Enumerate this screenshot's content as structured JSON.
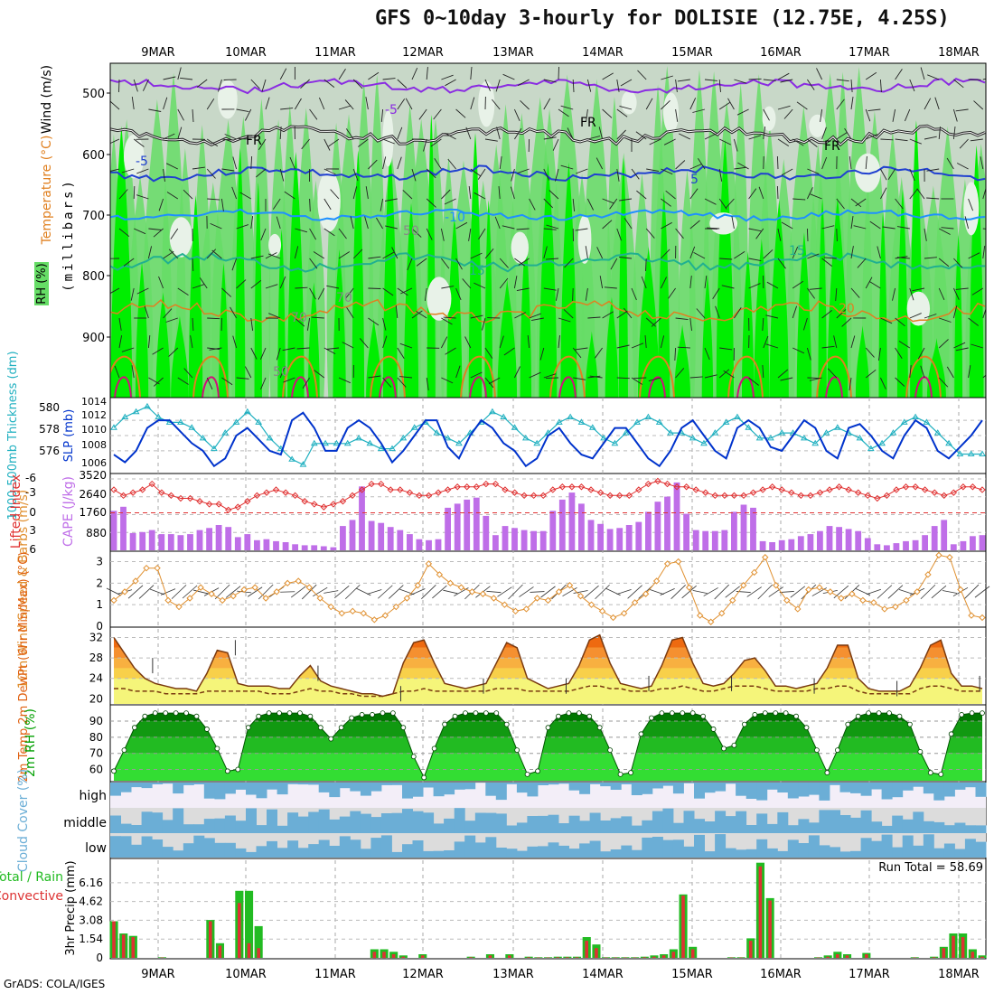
{
  "title": "GFS 0~10day 3-hourly for DOLISIE (12.75E, 4.25S)",
  "credit": "GrADS: COLA/IGES",
  "colors": {
    "rh_light": "#c8d8c8",
    "rh_mid": "#66dd66",
    "rh_high": "#00ee00",
    "temp_minus": "#8a2be2",
    "temp_5": "#2040d0",
    "temp_10": "#1e90ff",
    "temp_15": "#20b090",
    "temp_20": "#e08020",
    "slp": "#0033cc",
    "thickness": "#20b0c0",
    "cape": "#bf6ee8",
    "lifted": "#e03030",
    "wind10m": "#e09030",
    "temp2m": "#e06010",
    "rh2m": "#00a000",
    "cloud": "#6baed6",
    "cloud_bg": "#dcdcdc",
    "precip_total": "#22bb22",
    "precip_conv": "#dd3333"
  },
  "date_labels": [
    "9MAR",
    "10MAR",
    "11MAR",
    "12MAR",
    "13MAR",
    "14MAR",
    "15MAR",
    "16MAR",
    "17MAR",
    "18MAR"
  ],
  "panels": {
    "upper": {
      "ylabel_wind": "Wind (m/s)",
      "ylabel_temp": "Temperature (°C)",
      "ylabel_mb": "(millibars)",
      "ylabel_rh": "RH (%)",
      "yticks": [
        "500",
        "600",
        "700",
        "800",
        "900"
      ],
      "contour_labels": [
        "-5",
        "FR",
        "FR",
        "FR",
        "-5",
        "5",
        "-10",
        "15",
        "15",
        "20",
        "50",
        "70",
        "70",
        "50"
      ]
    },
    "slp": {
      "ylabel_left": "1000-500mb Thickness (dm)",
      "ylabel_right": "SLP (mb)",
      "yticks_left": [
        "580",
        "578",
        "576"
      ],
      "yticks_right": [
        "1014",
        "1012",
        "1010",
        "1008",
        "1006"
      ]
    },
    "cape": {
      "ylabel_left": "Lifted Index",
      "ylabel_right": "CAPE (J/kg)",
      "yticks_left": [
        "-6",
        "-3",
        "0",
        "3",
        "6"
      ],
      "yticks_right": [
        "3520",
        "2640",
        "1760",
        "880"
      ]
    },
    "wind10m": {
      "ylabel": "10m Wind Speed & Barbs (m/s)",
      "yticks": [
        "3",
        "2",
        "1",
        "0"
      ]
    },
    "temp2m": {
      "ylabel": "2m Temp 2m DewPt (6hr Min/Max) (°C)",
      "yticks": [
        "32",
        "28",
        "24",
        "20"
      ]
    },
    "rh2m": {
      "ylabel": "2m RH (%)",
      "yticks": [
        "90",
        "80",
        "70",
        "60"
      ]
    },
    "cloud": {
      "ylabel": "Cloud Cover (%)",
      "levels": [
        "high",
        "middle",
        "low"
      ]
    },
    "precip": {
      "ylabel_left": "Total / Rain Convective",
      "ylabel_right": "3hr Precip (mm)",
      "yticks": [
        "6.16",
        "4.62",
        "3.08",
        "1.54",
        "0"
      ],
      "run_total_label": "Run Total = 58.69"
    }
  },
  "chart_data": [
    {
      "type": "line",
      "title": "1000-500mb Thickness / SLP",
      "series": [
        {
          "name": "SLP (mb)",
          "values": [
            1007.5,
            1006.5,
            1008,
            1011,
            1012,
            1012,
            1010.5,
            1009,
            1008,
            1006,
            1007,
            1010,
            1011,
            1009.5,
            1008,
            1007.5,
            1012,
            1013,
            1011,
            1008,
            1008,
            1011,
            1012,
            1011,
            1009,
            1006.5,
            1008,
            1010,
            1012,
            1012,
            1008.5,
            1007,
            1010,
            1012,
            1011,
            1009,
            1008,
            1006,
            1007,
            1010,
            1011,
            1009,
            1007.5,
            1007,
            1009,
            1011,
            1011,
            1009,
            1007,
            1006,
            1008,
            1011,
            1012,
            1010,
            1008,
            1007,
            1011,
            1012,
            1011,
            1008.5,
            1008,
            1010,
            1012,
            1011,
            1008,
            1007,
            1011,
            1011.5,
            1010,
            1008,
            1007,
            1010,
            1012,
            1011,
            1008,
            1007,
            1008.5,
            1010,
            1012
          ]
        },
        {
          "name": "Thickness (dm)",
          "values": [
            579,
            580,
            580.5,
            581,
            580,
            579.5,
            579.5,
            579,
            578,
            577,
            578.5,
            579.5,
            580.5,
            579.5,
            578,
            577,
            576,
            575.5,
            577.5,
            577.5,
            577.5,
            577.5,
            578,
            577.5,
            577,
            577,
            578,
            579,
            579.5,
            578.5,
            578,
            577.5,
            578.5,
            579.5,
            580.5,
            580,
            579,
            578,
            577.5,
            578.5,
            579.5,
            580,
            579.5,
            579,
            578,
            577.5,
            578.5,
            579.5,
            580,
            579.5,
            578.5,
            578.5,
            578,
            577.5,
            578.5,
            579.5,
            580,
            579,
            578,
            578,
            578.5,
            578.5,
            578,
            577.5,
            578.5,
            579,
            578.5,
            578,
            577,
            577.5,
            578.5,
            579.5,
            580,
            579.5,
            578.5,
            577.5,
            576.5,
            576.5,
            576.5
          ]
        }
      ]
    },
    {
      "type": "bar",
      "title": "CAPE (J/kg) / Lifted Index",
      "series": [
        {
          "name": "CAPE (J/kg)",
          "values": [
            1950,
            2150,
            850,
            900,
            1000,
            800,
            800,
            750,
            800,
            1000,
            1100,
            1250,
            1150,
            650,
            800,
            500,
            550,
            450,
            400,
            300,
            250,
            250,
            200,
            150,
            1200,
            1500,
            3150,
            1450,
            1350,
            1150,
            1000,
            800,
            550,
            500,
            550,
            2100,
            2300,
            2500,
            2600,
            1700,
            750,
            1200,
            1100,
            1000,
            950,
            950,
            1950,
            2500,
            2850,
            2300,
            1500,
            1300,
            1050,
            1100,
            1250,
            1400,
            1900,
            2400,
            2650,
            3350,
            1800,
            1000,
            950,
            950,
            1000,
            1900,
            2250,
            2100,
            450,
            400,
            500,
            550,
            700,
            800,
            950,
            1200,
            1150,
            1050,
            950,
            600,
            300,
            250,
            350,
            450,
            500,
            750,
            1200,
            1500,
            300,
            450,
            700,
            750
          ]
        },
        {
          "name": "Lifted Index",
          "values": [
            -4,
            -3,
            -3.5,
            -4,
            -5,
            -3.5,
            -3,
            -2.5,
            -2.5,
            -2,
            -1.5,
            -1.5,
            -0.5,
            -1,
            -2,
            -3,
            -3.5,
            -4,
            -3.5,
            -3,
            -2,
            -1.5,
            -1,
            -1.5,
            -2,
            -3,
            -4,
            -5,
            -5,
            -4,
            -4,
            -3.5,
            -3,
            -3,
            -3.5,
            -4,
            -4.5,
            -4.5,
            -4.5,
            -5,
            -5,
            -4,
            -3.5,
            -3,
            -3,
            -3,
            -4,
            -4.5,
            -4.5,
            -4.5,
            -4,
            -3.5,
            -3,
            -3,
            -3,
            -4,
            -5,
            -5.5,
            -5,
            -4.5,
            -4.5,
            -4,
            -3.5,
            -3,
            -3,
            -3,
            -3,
            -3.5,
            -4,
            -4.5,
            -4,
            -3.5,
            -3,
            -3,
            -3.5,
            -4,
            -4.5,
            -4,
            -3.5,
            -3,
            -2.5,
            -3,
            -4,
            -4.5,
            -4.5,
            -4,
            -3.5,
            -3,
            -3.5,
            -4.5,
            -4.5,
            -4
          ]
        }
      ]
    },
    {
      "type": "line",
      "title": "10m Wind Speed (m/s)",
      "series": [
        {
          "name": "Speed",
          "values": [
            1.2,
            1.6,
            2.1,
            2.7,
            2.7,
            1.2,
            0.9,
            1.3,
            1.8,
            1.5,
            1.2,
            1.4,
            1.7,
            1.8,
            1.3,
            1.6,
            2.0,
            2.1,
            1.8,
            1.3,
            0.9,
            0.6,
            0.7,
            0.6,
            0.3,
            0.5,
            0.9,
            1.3,
            1.9,
            2.9,
            2.4,
            2.0,
            1.8,
            1.6,
            1.5,
            1.3,
            1.0,
            0.7,
            0.8,
            1.3,
            1.2,
            1.6,
            1.9,
            1.4,
            1.0,
            0.7,
            0.4,
            0.6,
            1.1,
            1.5,
            2.1,
            2.9,
            3.0,
            1.8,
            0.5,
            0.2,
            0.6,
            1.2,
            1.9,
            2.5,
            3.2,
            1.9,
            1.2,
            0.8,
            1.7,
            1.8,
            1.6,
            1.3,
            1.5,
            1.2,
            1.1,
            0.8,
            0.9,
            1.2,
            1.6,
            2.4,
            3.3,
            3.2,
            1.7,
            0.5,
            0.4
          ]
        }
      ]
    },
    {
      "type": "area",
      "title": "2m Temp / 2m DewPt (°C)",
      "series": [
        {
          "name": "2m Temp",
          "values": [
            32,
            29,
            26,
            24,
            23,
            22.5,
            22,
            22,
            21.5,
            25,
            29.5,
            29,
            23,
            22.5,
            22.5,
            22.5,
            22,
            22,
            24.5,
            26.5,
            23.5,
            22.5,
            22,
            21.5,
            21,
            21,
            20.5,
            21,
            27,
            31,
            31.5,
            27,
            23,
            22.5,
            22,
            22.5,
            23,
            27,
            31,
            30,
            24,
            23,
            22,
            22.5,
            23,
            26.5,
            31.5,
            32.5,
            27,
            23,
            22.5,
            22,
            22.5,
            26.5,
            31.5,
            32,
            27,
            23,
            22.5,
            23,
            25,
            27.5,
            28,
            25.5,
            22.5,
            22.5,
            22,
            22.5,
            23,
            26,
            30.5,
            30.5,
            24,
            22,
            21.5,
            21.5,
            21.5,
            22.5,
            26,
            30.5,
            31.5,
            25,
            22.5,
            22.5,
            22
          ]
        },
        {
          "name": "2m DewPt",
          "values": [
            22,
            22,
            21.5,
            21.5,
            21.5,
            21,
            21,
            21,
            21,
            21.5,
            21.5,
            21.5,
            21.5,
            21.5,
            21.5,
            21,
            21,
            21,
            21.5,
            22,
            21.5,
            21.5,
            21,
            21,
            20.5,
            20.5,
            20.5,
            21,
            21.5,
            21.5,
            22,
            21.5,
            21.5,
            21.5,
            21.5,
            21.5,
            21.5,
            22,
            22,
            22,
            21.5,
            21.5,
            21.5,
            21.5,
            21.5,
            22,
            22.5,
            22.5,
            22,
            22,
            21.5,
            21.5,
            21.5,
            22,
            22,
            22.5,
            22,
            21.5,
            21.5,
            22,
            22.5,
            22.5,
            22.5,
            22,
            21.5,
            21.5,
            21.5,
            21.5,
            22,
            22,
            22.5,
            22.5,
            21.5,
            21,
            21,
            21,
            21,
            21,
            22,
            22.5,
            22.5,
            22,
            21.5,
            21.5,
            21.5
          ]
        }
      ]
    },
    {
      "type": "area",
      "title": "2m RH (%)",
      "series": [
        {
          "name": "2m RH",
          "values": [
            59,
            72,
            86,
            93,
            95,
            95,
            95,
            95,
            93,
            85,
            73,
            59,
            60,
            86,
            93,
            95,
            95,
            95,
            95,
            93,
            86,
            79,
            86,
            92,
            94,
            94,
            95,
            95,
            86,
            68,
            55,
            73,
            88,
            93,
            95,
            95,
            95,
            95,
            88,
            72,
            57,
            59,
            86,
            93,
            95,
            95,
            93,
            86,
            72,
            57,
            58,
            82,
            92,
            95,
            95,
            95,
            95,
            93,
            85,
            73,
            75,
            88,
            94,
            95,
            95,
            95,
            93,
            86,
            72,
            58,
            72,
            88,
            93,
            95,
            95,
            95,
            93,
            88,
            71,
            58,
            57,
            82,
            94,
            95,
            95
          ]
        }
      ]
    },
    {
      "type": "bar",
      "title": "3hr Precip (mm)",
      "series": [
        {
          "name": "Total",
          "values": [
            3.0,
            2.0,
            1.8,
            0,
            0,
            0.05,
            0,
            0,
            0,
            0,
            3.1,
            1.2,
            0,
            5.5,
            5.5,
            2.6,
            0,
            0,
            0,
            0,
            0,
            0,
            0,
            0,
            0,
            0,
            0,
            0.7,
            0.7,
            0.5,
            0.2,
            0,
            0.3,
            0,
            0,
            0,
            0,
            0.1,
            0,
            0.3,
            0,
            0.3,
            0,
            0.1,
            0.05,
            0.05,
            0.1,
            0.1,
            0.1,
            1.7,
            1.1,
            0.05,
            0.05,
            0.05,
            0.05,
            0.1,
            0.2,
            0.3,
            0.7,
            5.2,
            0.9,
            0,
            0,
            0,
            0.05,
            0.05,
            1.6,
            7.8,
            4.9,
            0,
            0,
            0,
            0,
            0.05,
            0.2,
            0.5,
            0.3,
            0,
            0.4,
            0,
            0,
            0,
            0,
            0.05,
            0,
            0.1,
            0.9,
            2.0,
            2.0,
            0.7,
            0.2
          ]
        },
        {
          "name": "Convective",
          "values": [
            3.0,
            1.9,
            1.7,
            0,
            0,
            0.03,
            0,
            0,
            0,
            0,
            3.0,
            1.0,
            0,
            4.5,
            1.2,
            0.8,
            0,
            0,
            0,
            0,
            0,
            0,
            0,
            0,
            0,
            0,
            0,
            0.5,
            0.5,
            0.3,
            0.1,
            0,
            0.2,
            0,
            0,
            0,
            0,
            0.05,
            0,
            0.2,
            0,
            0.2,
            0,
            0.05,
            0.03,
            0.03,
            0.05,
            0.05,
            0.05,
            1.4,
            0.8,
            0.03,
            0.03,
            0.03,
            0.03,
            0.05,
            0.1,
            0.2,
            0.5,
            5.1,
            0.7,
            0,
            0,
            0,
            0.03,
            0.03,
            1.4,
            7.5,
            4.7,
            0,
            0,
            0,
            0,
            0.03,
            0.1,
            0.3,
            0.2,
            0,
            0.3,
            0,
            0,
            0,
            0,
            0.03,
            0,
            0.05,
            0.8,
            1.8,
            1.7,
            0.5,
            0.1
          ]
        }
      ]
    }
  ]
}
